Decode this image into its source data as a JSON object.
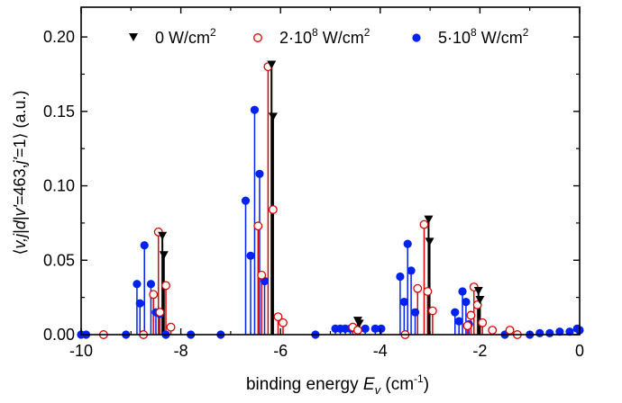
{
  "chart_data": {
    "type": "scatter",
    "title": "",
    "xlabel": "binding energy E_v (cm^-1)",
    "ylabel": "⟨v,j|d|v'=463,j'=1⟩ (a.u.)",
    "xlim": [
      -10,
      0
    ],
    "ylim": [
      0,
      0.22
    ],
    "x_ticks": [
      -10,
      -8,
      -6,
      -4,
      -2,
      0
    ],
    "x_tick_labels": [
      "-10",
      "-8",
      "-6",
      "-4",
      "-2",
      "0"
    ],
    "y_ticks": [
      0,
      0.05,
      0.1,
      0.15,
      0.2
    ],
    "y_tick_labels": [
      "0.00",
      "0.05",
      "0.10",
      "0.15",
      "0.20"
    ],
    "legend_position": "top",
    "series": [
      {
        "name": "0 W/cm2",
        "label_parts": {
          "base": "0 W/cm",
          "sup": "2"
        },
        "marker": "triangle-down",
        "color": "#000000",
        "filled": true,
        "points": [
          {
            "x": -8.37,
            "y": 0.066
          },
          {
            "x": -8.34,
            "y": 0.053
          },
          {
            "x": -6.18,
            "y": 0.181
          },
          {
            "x": -6.15,
            "y": 0.146
          },
          {
            "x": -4.45,
            "y": 0.009
          },
          {
            "x": -4.42,
            "y": 0.007
          },
          {
            "x": -3.03,
            "y": 0.077
          },
          {
            "x": -3.01,
            "y": 0.062
          },
          {
            "x": -2.03,
            "y": 0.029
          },
          {
            "x": -2.0,
            "y": 0.023
          }
        ]
      },
      {
        "name": "2·10^8 W/cm2",
        "label_parts": {
          "base": "2·10",
          "sup1": "8",
          "mid": " W/cm",
          "sup2": "2"
        },
        "marker": "circle-open",
        "color": "#e00000",
        "filled": false,
        "points": [
          {
            "x": -9.55,
            "y": 0.0
          },
          {
            "x": -8.75,
            "y": 0.0
          },
          {
            "x": -8.55,
            "y": 0.027
          },
          {
            "x": -8.45,
            "y": 0.069
          },
          {
            "x": -8.42,
            "y": 0.015
          },
          {
            "x": -8.3,
            "y": 0.033
          },
          {
            "x": -8.2,
            "y": 0.005
          },
          {
            "x": -6.45,
            "y": 0.073
          },
          {
            "x": -6.38,
            "y": 0.04
          },
          {
            "x": -6.25,
            "y": 0.18
          },
          {
            "x": -6.15,
            "y": 0.084
          },
          {
            "x": -6.05,
            "y": 0.012
          },
          {
            "x": -5.95,
            "y": 0.008
          },
          {
            "x": -4.55,
            "y": 0.005
          },
          {
            "x": -4.45,
            "y": 0.003
          },
          {
            "x": -3.5,
            "y": 0.0
          },
          {
            "x": -3.25,
            "y": 0.031
          },
          {
            "x": -3.12,
            "y": 0.074
          },
          {
            "x": -3.05,
            "y": 0.029
          },
          {
            "x": -2.95,
            "y": 0.016
          },
          {
            "x": -2.25,
            "y": 0.006
          },
          {
            "x": -2.18,
            "y": 0.013
          },
          {
            "x": -2.12,
            "y": 0.032
          },
          {
            "x": -2.05,
            "y": 0.02
          },
          {
            "x": -1.95,
            "y": 0.008
          },
          {
            "x": -1.75,
            "y": 0.003
          },
          {
            "x": -1.4,
            "y": 0.003
          },
          {
            "x": -1.25,
            "y": 0.0
          }
        ]
      },
      {
        "name": "5·10^8 W/cm2",
        "label_parts": {
          "base": "5·10",
          "sup1": "8",
          "mid": " W/cm",
          "sup2": "2"
        },
        "marker": "circle-filled",
        "color": "#0022ee",
        "filled": true,
        "points": [
          {
            "x": -10.0,
            "y": 0.0
          },
          {
            "x": -9.9,
            "y": 0.0
          },
          {
            "x": -9.1,
            "y": 0.0
          },
          {
            "x": -8.88,
            "y": 0.034
          },
          {
            "x": -8.82,
            "y": 0.021
          },
          {
            "x": -8.73,
            "y": 0.06
          },
          {
            "x": -8.6,
            "y": 0.034
          },
          {
            "x": -8.5,
            "y": 0.015
          },
          {
            "x": -8.42,
            "y": 0.014
          },
          {
            "x": -8.3,
            "y": 0.0
          },
          {
            "x": -7.8,
            "y": 0.0
          },
          {
            "x": -7.2,
            "y": 0.0
          },
          {
            "x": -6.7,
            "y": 0.09
          },
          {
            "x": -6.6,
            "y": 0.053
          },
          {
            "x": -6.52,
            "y": 0.151
          },
          {
            "x": -6.42,
            "y": 0.108
          },
          {
            "x": -6.32,
            "y": 0.036
          },
          {
            "x": -5.3,
            "y": 0.0
          },
          {
            "x": -4.9,
            "y": 0.004
          },
          {
            "x": -4.8,
            "y": 0.004
          },
          {
            "x": -4.7,
            "y": 0.004
          },
          {
            "x": -4.6,
            "y": 0.004
          },
          {
            "x": -4.3,
            "y": 0.004
          },
          {
            "x": -4.1,
            "y": 0.004
          },
          {
            "x": -3.98,
            "y": 0.004
          },
          {
            "x": -3.6,
            "y": 0.039
          },
          {
            "x": -3.52,
            "y": 0.022
          },
          {
            "x": -3.45,
            "y": 0.061
          },
          {
            "x": -3.38,
            "y": 0.043
          },
          {
            "x": -3.3,
            "y": 0.015
          },
          {
            "x": -2.5,
            "y": 0.015
          },
          {
            "x": -2.42,
            "y": 0.009
          },
          {
            "x": -2.35,
            "y": 0.029
          },
          {
            "x": -2.28,
            "y": 0.022
          },
          {
            "x": -2.22,
            "y": 0.007
          },
          {
            "x": -1.5,
            "y": 0.0
          },
          {
            "x": -1.0,
            "y": 0.0
          },
          {
            "x": -0.8,
            "y": 0.001
          },
          {
            "x": -0.6,
            "y": 0.001
          },
          {
            "x": -0.4,
            "y": 0.002
          },
          {
            "x": -0.2,
            "y": 0.002
          },
          {
            "x": -0.05,
            "y": 0.004
          },
          {
            "x": 0.0,
            "y": 0.003
          }
        ]
      }
    ]
  }
}
